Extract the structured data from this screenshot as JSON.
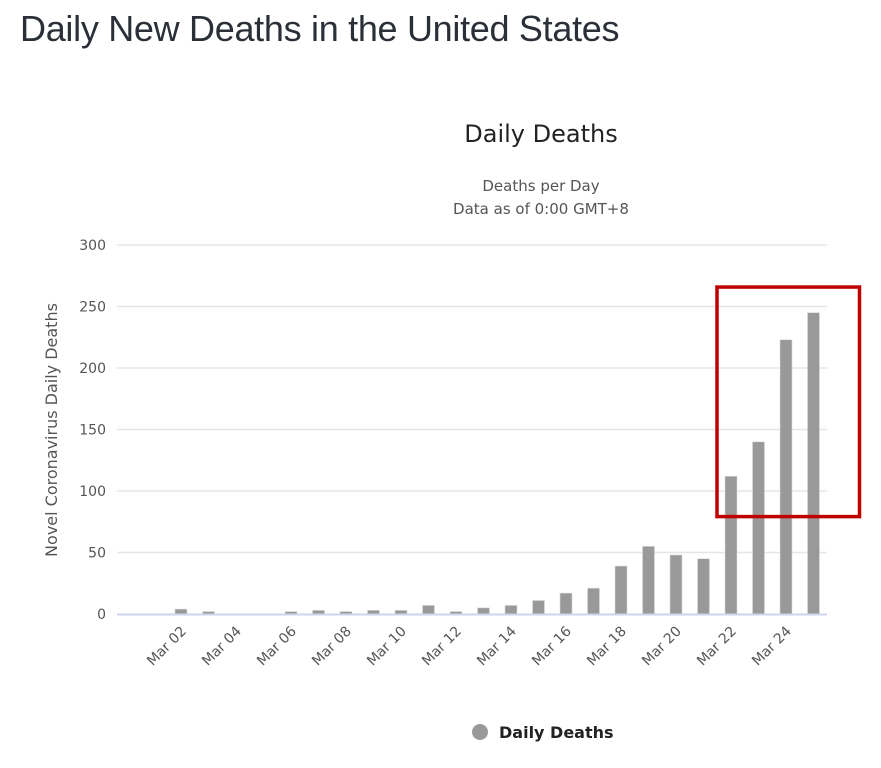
{
  "page": {
    "title": "Daily New Deaths in the United States"
  },
  "chart_data": {
    "type": "bar",
    "title": "Daily Deaths",
    "subtitle_lines": [
      "Deaths per Day",
      "Data as of 0:00 GMT+8"
    ],
    "xlabel": "",
    "ylabel": "Novel Coronavirus Daily Deaths",
    "ylim": [
      0,
      300
    ],
    "yticks": [
      0,
      50,
      100,
      150,
      200,
      250,
      300
    ],
    "grid": true,
    "categories": [
      "Mar 01",
      "Mar 02",
      "Mar 03",
      "Mar 04",
      "Mar 05",
      "Mar 06",
      "Mar 07",
      "Mar 08",
      "Mar 09",
      "Mar 10",
      "Mar 11",
      "Mar 12",
      "Mar 13",
      "Mar 14",
      "Mar 15",
      "Mar 16",
      "Mar 17",
      "Mar 18",
      "Mar 19",
      "Mar 20",
      "Mar 21",
      "Mar 22",
      "Mar 23",
      "Mar 24",
      "Mar 25"
    ],
    "xtick_labels": [
      "Mar 02",
      "Mar 04",
      "Mar 06",
      "Mar 08",
      "Mar 10",
      "Mar 12",
      "Mar 14",
      "Mar 16",
      "Mar 18",
      "Mar 20",
      "Mar 22",
      "Mar 24"
    ],
    "series": [
      {
        "name": "Daily Deaths",
        "color": "#999999",
        "values": [
          0,
          4,
          2,
          0,
          0,
          2,
          3,
          2,
          3,
          3,
          7,
          2,
          5,
          7,
          11,
          17,
          21,
          39,
          55,
          48,
          45,
          112,
          140,
          223,
          245
        ]
      }
    ],
    "legend": {
      "position": "bottom-center",
      "entries": [
        "Daily Deaths"
      ]
    },
    "annotations": [
      {
        "type": "highlight-box",
        "color": "#c00000",
        "covers_categories": [
          "Mar 22",
          "Mar 23",
          "Mar 24",
          "Mar 25"
        ],
        "y_range": [
          80,
          265
        ]
      }
    ]
  },
  "colors": {
    "bar": "#999999",
    "grid": "#e6e6e6",
    "axis_line": "#ccd6eb",
    "highlight": "#c00000"
  }
}
